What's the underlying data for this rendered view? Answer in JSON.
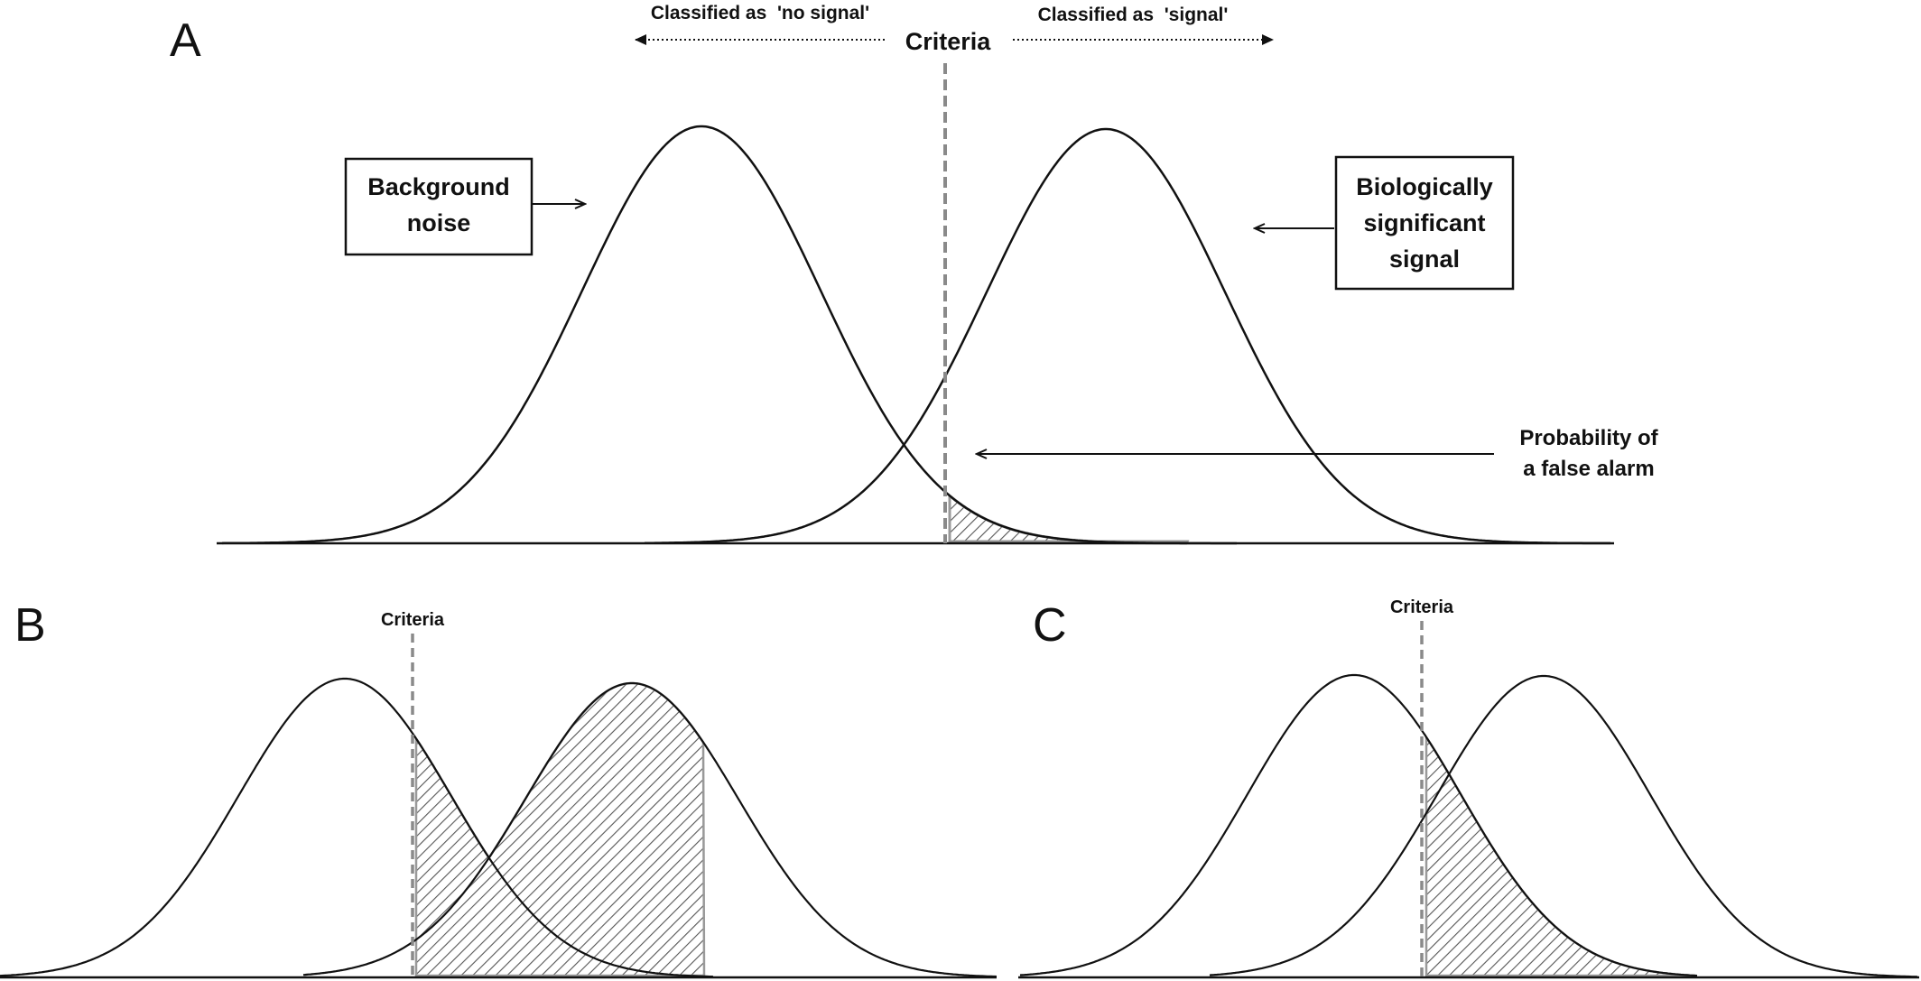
{
  "panels": {
    "A": {
      "letter": "A",
      "criteria_label": "Criteria",
      "left_classification": "Classified as  'no signal'",
      "right_classification": "Classified as  'signal'",
      "noise_label_line1": "Background",
      "noise_label_line2": "noise",
      "signal_label_line1": "Biologically",
      "signal_label_line2": "significant",
      "signal_label_line3": "signal",
      "false_alarm_line1": "Probability of",
      "false_alarm_line2": "a false alarm"
    },
    "B": {
      "letter": "B",
      "criteria_label": "Criteria"
    },
    "C": {
      "letter": "C",
      "criteria_label": "Criteria"
    }
  },
  "colors": {
    "curve": "#111111",
    "criteria_line": "#8a8a8a",
    "hatch": "#555555",
    "hatch_outline": "#999999"
  }
}
